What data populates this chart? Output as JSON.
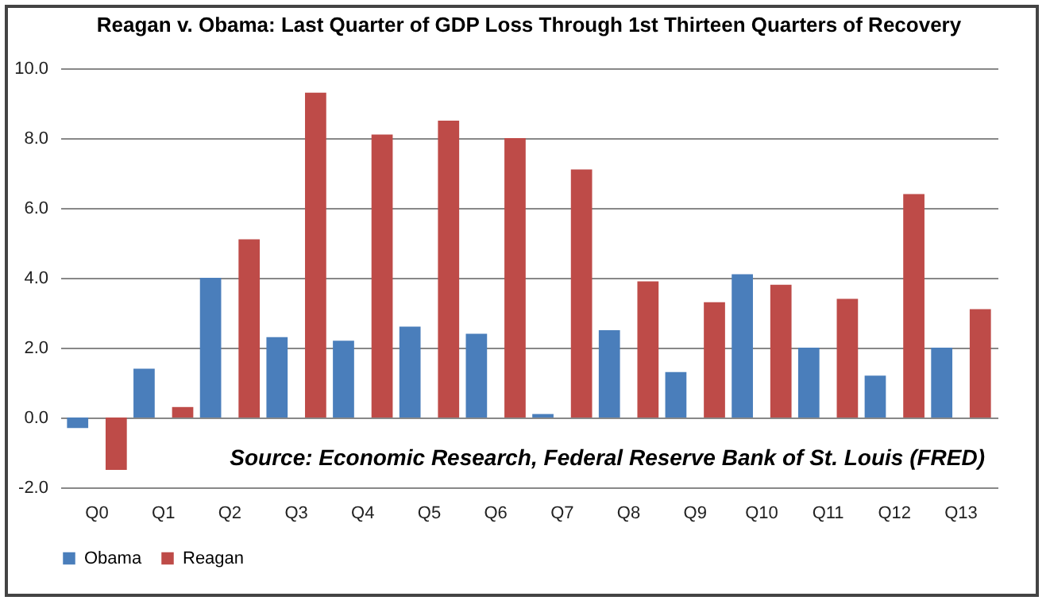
{
  "chart_data": {
    "type": "bar",
    "title": "Reagan v. Obama:  Last Quarter of GDP Loss Through 1st Thirteen Quarters of Recovery",
    "categories": [
      "Q0",
      "Q1",
      "Q2",
      "Q3",
      "Q4",
      "Q5",
      "Q6",
      "Q7",
      "Q8",
      "Q9",
      "Q10",
      "Q11",
      "Q12",
      "Q13"
    ],
    "series": [
      {
        "name": "Obama",
        "color": "#4a7ebb",
        "values": [
          -0.3,
          1.4,
          4.0,
          2.3,
          2.2,
          2.6,
          2.4,
          0.1,
          2.5,
          1.3,
          4.1,
          2.0,
          1.2,
          2.0
        ]
      },
      {
        "name": "Reagan",
        "color": "#be4b48",
        "values": [
          -1.5,
          0.3,
          5.1,
          9.3,
          8.1,
          8.5,
          8.0,
          7.1,
          3.9,
          3.3,
          3.8,
          3.4,
          6.4,
          3.1
        ]
      }
    ],
    "ylim": [
      -2,
      10
    ],
    "yticks": [
      {
        "value": -2,
        "label": "-2.0"
      },
      {
        "value": 0,
        "label": "0.0"
      },
      {
        "value": 2,
        "label": "2.0"
      },
      {
        "value": 4,
        "label": "4.0"
      },
      {
        "value": 6,
        "label": "6.0"
      },
      {
        "value": 8,
        "label": "8.0"
      },
      {
        "value": 10,
        "label": "10.0"
      }
    ],
    "grid": "y",
    "legend": "bottom",
    "annotations": [
      "Source:  Economic Research, Federal Reserve Bank of St. Louis (FRED)"
    ]
  }
}
